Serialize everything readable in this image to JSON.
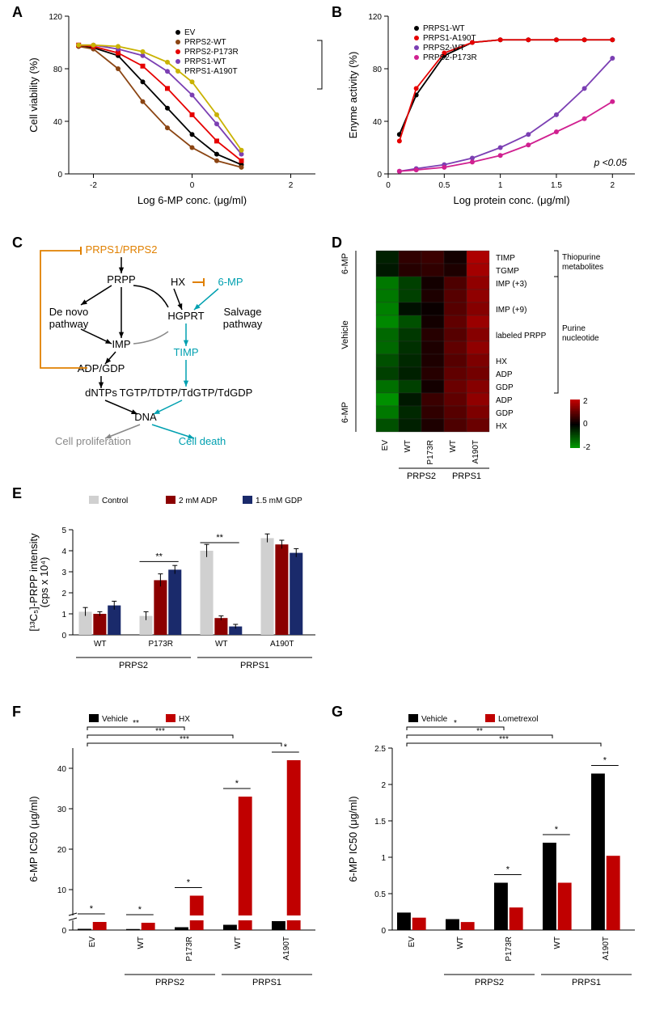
{
  "panelA": {
    "label": "A",
    "xlabel": "Log 6-MP conc. (μg/ml)",
    "ylabel": "Cell viability (%)",
    "xlim": [
      -2.5,
      2.5
    ],
    "xtick": [
      -2,
      0,
      2
    ],
    "ylim": [
      0,
      120
    ],
    "ytick": [
      0,
      40,
      80,
      120
    ],
    "series": [
      {
        "name": "EV",
        "color": "#000",
        "marker": "circle",
        "x": [
          -2.3,
          -2,
          -1.5,
          -1,
          -0.5,
          0,
          0.5,
          1
        ],
        "y": [
          97,
          96,
          90,
          70,
          50,
          30,
          15,
          7
        ]
      },
      {
        "name": "PRPS2-WT",
        "color": "#8b4513",
        "marker": "circle",
        "x": [
          -2.3,
          -2,
          -1.5,
          -1,
          -0.5,
          0,
          0.5,
          1
        ],
        "y": [
          97,
          95,
          80,
          55,
          35,
          20,
          10,
          5
        ]
      },
      {
        "name": "PRPS2-P173R",
        "color": "#e60000",
        "marker": "square",
        "x": [
          -2.3,
          -2,
          -1.5,
          -1,
          -0.5,
          0,
          0.5,
          1
        ],
        "y": [
          98,
          97,
          92,
          82,
          65,
          45,
          25,
          10
        ]
      },
      {
        "name": "PRPS1-WT",
        "color": "#7b3fb3",
        "marker": "circle",
        "x": [
          -2.3,
          -2,
          -1.5,
          -1,
          -0.5,
          0,
          0.5,
          1
        ],
        "y": [
          98,
          98,
          95,
          90,
          78,
          60,
          38,
          15
        ]
      },
      {
        "name": "PRPS1-A190T",
        "color": "#c9b200",
        "marker": "circle",
        "x": [
          -2.3,
          -2,
          -1.5,
          -1,
          -0.5,
          0,
          0.5,
          1
        ],
        "y": [
          98,
          98,
          97,
          93,
          85,
          70,
          45,
          18
        ]
      }
    ],
    "sig_brackets": [
      "*",
      "*",
      "*"
    ]
  },
  "panelB": {
    "label": "B",
    "xlabel": "Log protein conc. (μg/ml)",
    "ylabel": "Enyme activity (%)",
    "xlim": [
      0,
      2.2
    ],
    "xtick": [
      0,
      0.5,
      1.0,
      1.5,
      2.0
    ],
    "ylim": [
      0,
      120
    ],
    "ytick": [
      0,
      40,
      80,
      120
    ],
    "pval": "p <0.05",
    "series": [
      {
        "name": "PRPS1-WT",
        "color": "#000",
        "marker": "circle",
        "x": [
          0.1,
          0.25,
          0.5,
          0.75,
          1.0,
          1.25,
          1.5,
          1.75,
          2.0
        ],
        "y": [
          30,
          60,
          90,
          100,
          102,
          102,
          102,
          102,
          102
        ]
      },
      {
        "name": "PRPS1-A190T",
        "color": "#e60000",
        "marker": "circle",
        "x": [
          0.1,
          0.25,
          0.5,
          0.75,
          1.0,
          1.25,
          1.5,
          1.75,
          2.0
        ],
        "y": [
          25,
          65,
          92,
          100,
          102,
          102,
          102,
          102,
          102
        ]
      },
      {
        "name": "PRPS2-WT",
        "color": "#7b3fb3",
        "marker": "circle",
        "x": [
          0.1,
          0.25,
          0.5,
          0.75,
          1.0,
          1.25,
          1.5,
          1.75,
          2.0
        ],
        "y": [
          2,
          4,
          7,
          12,
          20,
          30,
          45,
          65,
          88
        ]
      },
      {
        "name": "PRPS2-P173R",
        "color": "#d02090",
        "marker": "circle",
        "x": [
          0.1,
          0.25,
          0.5,
          0.75,
          1.0,
          1.25,
          1.5,
          1.75,
          2.0
        ],
        "y": [
          2,
          3,
          5,
          9,
          14,
          22,
          32,
          42,
          55
        ]
      }
    ]
  },
  "panelC": {
    "label": "C",
    "nodes": {
      "prps": "PRPS1/PRPS2",
      "prpp": "PRPP",
      "denovo": "De novo\npathway",
      "imp": "IMP",
      "adp": "ADP/GDP",
      "dntp": "dNTPs",
      "dna": "DNA",
      "prolif": "Cell proliferation",
      "death": "Cell death",
      "hx": "HX",
      "6mp": "6-MP",
      "hgprt": "HGPRT",
      "salvage": "Salvage\npathway",
      "timp": "TIMP",
      "tgtp": "TGTP/TDTP/TdGTP/TdGDP"
    },
    "colors": {
      "6mp": "#00a0b0",
      "timp": "#00a0b0",
      "feedback": "#e08000"
    }
  },
  "panelD": {
    "label": "D",
    "row_groups": [
      {
        "label": "6-MP",
        "rows": [
          "TIMP",
          "TGMP"
        ],
        "bracket": "Thiopurine\nmetabolites"
      },
      {
        "label": "Vehicle",
        "rows": [
          "IMP (+3)",
          "",
          "IMP (+9)",
          "",
          "labeled PRPP",
          "",
          "HX",
          "ADP",
          "GDP"
        ],
        "bracket": "Purine\nnucleotide"
      },
      {
        "label": "6-MP",
        "rows": [
          "ADP",
          "GDP",
          "HX"
        ],
        "bracket": ""
      }
    ],
    "cols": [
      "EV",
      "WT",
      "P173R",
      "WT",
      "A190T"
    ],
    "col_groups": [
      {
        "label": "PRPS2",
        "span": [
          1,
          2
        ]
      },
      {
        "label": "PRPS1",
        "span": [
          3,
          4
        ]
      }
    ],
    "legend": {
      "min": -2,
      "mid": 0,
      "max": 2,
      "low": "#00a000",
      "mid_c": "#000",
      "high": "#c00000"
    },
    "matrix": [
      [
        -0.4,
        0.5,
        0.6,
        0.2,
        1.8
      ],
      [
        -0.3,
        0.4,
        0.5,
        0.3,
        1.7
      ],
      [
        -1.5,
        -0.8,
        0.2,
        0.8,
        1.5
      ],
      [
        -1.5,
        -0.8,
        0.3,
        0.9,
        1.5
      ],
      [
        -1.6,
        -0.2,
        0.1,
        0.9,
        1.4
      ],
      [
        -1.7,
        -1.0,
        0.2,
        1.0,
        1.6
      ],
      [
        -1.3,
        -0.7,
        0.4,
        0.9,
        1.4
      ],
      [
        -1.3,
        -0.6,
        0.3,
        1.0,
        1.5
      ],
      [
        -1.0,
        -0.5,
        0.3,
        0.9,
        1.3
      ],
      [
        -0.8,
        -0.4,
        0.4,
        1.0,
        1.2
      ],
      [
        -1.4,
        -0.8,
        0.2,
        1.1,
        1.4
      ],
      [
        -1.8,
        -0.3,
        0.6,
        1.0,
        1.5
      ],
      [
        -1.5,
        -0.5,
        0.5,
        0.9,
        1.3
      ],
      [
        -1.0,
        -0.4,
        0.3,
        0.8,
        1.1
      ]
    ]
  },
  "panelE": {
    "label": "E",
    "ylabel": "[¹³C₅]-PRPP intensity\n(cps x 10⁴)",
    "ylim": [
      0,
      5
    ],
    "ytick": [
      0,
      1,
      2,
      3,
      4,
      5
    ],
    "legend": [
      {
        "name": "Control",
        "color": "#d0d0d0"
      },
      {
        "name": "2 mM ADP",
        "color": "#8b0000"
      },
      {
        "name": "1.5 mM GDP",
        "color": "#1a2a6b"
      }
    ],
    "groups": [
      {
        "name": "WT",
        "sub": "PRPS2",
        "vals": [
          1.1,
          1.0,
          1.4
        ],
        "err": [
          0.2,
          0.1,
          0.2
        ]
      },
      {
        "name": "P173R",
        "sub": "PRPS2",
        "vals": [
          0.9,
          2.6,
          3.1
        ],
        "err": [
          0.2,
          0.3,
          0.2
        ],
        "sig": "**"
      },
      {
        "name": "WT",
        "sub": "PRPS1",
        "vals": [
          4.0,
          0.8,
          0.4
        ],
        "err": [
          0.3,
          0.1,
          0.1
        ],
        "sig": "**"
      },
      {
        "name": "A190T",
        "sub": "PRPS1",
        "vals": [
          4.6,
          4.3,
          3.9
        ],
        "err": [
          0.2,
          0.2,
          0.2
        ]
      }
    ]
  },
  "panelF": {
    "label": "F",
    "ylabel": "6-MP IC50 (μg/ml)",
    "legend": [
      {
        "name": "Vehicle",
        "color": "#000"
      },
      {
        "name": "HX",
        "color": "#c00000"
      }
    ],
    "ylim": [
      0,
      45
    ],
    "ytick": [
      0,
      10,
      20,
      30,
      40
    ],
    "groups": [
      {
        "name": "EV",
        "sub": "",
        "vals": [
          0.3,
          2.0
        ],
        "sig": "*"
      },
      {
        "name": "WT",
        "sub": "PRPS2",
        "vals": [
          0.25,
          1.8
        ],
        "sig": "*"
      },
      {
        "name": "P173R",
        "sub": "PRPS2",
        "vals": [
          0.7,
          8.5
        ],
        "sig": "*"
      },
      {
        "name": "WT",
        "sub": "PRPS1",
        "vals": [
          1.3,
          33
        ],
        "sig": "*"
      },
      {
        "name": "A190T",
        "sub": "PRPS1",
        "vals": [
          2.2,
          42
        ],
        "sig": "*"
      }
    ],
    "top_sigs": [
      {
        "from": 0,
        "to": 4,
        "label": "***"
      },
      {
        "from": 0,
        "to": 3,
        "label": "***"
      },
      {
        "from": 0,
        "to": 2,
        "label": "**"
      }
    ]
  },
  "panelG": {
    "label": "G",
    "ylabel": "6-MP IC50 (μg/ml)",
    "legend": [
      {
        "name": "Vehicle",
        "color": "#000"
      },
      {
        "name": "Lometrexol",
        "color": "#c00000"
      }
    ],
    "ylim": [
      0,
      2.5
    ],
    "ytick": [
      0,
      0.5,
      1.0,
      1.5,
      2.0,
      2.5
    ],
    "groups": [
      {
        "name": "EV",
        "sub": "",
        "vals": [
          0.24,
          0.17
        ]
      },
      {
        "name": "WT",
        "sub": "PRPS2",
        "vals": [
          0.15,
          0.11
        ]
      },
      {
        "name": "P173R",
        "sub": "PRPS2",
        "vals": [
          0.65,
          0.31
        ],
        "sig": "*"
      },
      {
        "name": "WT",
        "sub": "PRPS1",
        "vals": [
          1.2,
          0.65
        ],
        "sig": "*"
      },
      {
        "name": "A190T",
        "sub": "PRPS1",
        "vals": [
          2.15,
          1.02
        ],
        "sig": "*"
      }
    ],
    "top_sigs": [
      {
        "from": 0,
        "to": 4,
        "label": "***"
      },
      {
        "from": 0,
        "to": 3,
        "label": "**"
      },
      {
        "from": 0,
        "to": 2,
        "label": "*"
      }
    ]
  }
}
